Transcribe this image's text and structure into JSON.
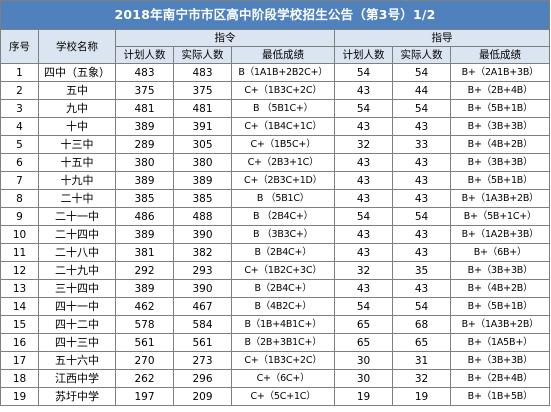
{
  "title": "2018年南宁市市区高中阶段学校招生公告（第3号）1/2",
  "headers": {
    "seq": "序号",
    "school": "学校名称",
    "directive_group": "指令",
    "guidance_group": "指导",
    "plan": "计划人数",
    "actual": "实际人数",
    "min_score": "最低成绩"
  },
  "rows": [
    {
      "no": "1",
      "school": "四中（五象）",
      "d_plan": "483",
      "d_actual": "483",
      "d_min": "B（1A1B+2B2C+）",
      "g_plan": "54",
      "g_actual": "54",
      "g_min": "B+（2A1B+3B）"
    },
    {
      "no": "2",
      "school": "五中",
      "d_plan": "375",
      "d_actual": "375",
      "d_min": "C+（1B3C+2C）",
      "g_plan": "43",
      "g_actual": "44",
      "g_min": "B+（2B+4B）"
    },
    {
      "no": "3",
      "school": "九中",
      "d_plan": "481",
      "d_actual": "481",
      "d_min": "B （5B1C+）",
      "g_plan": "54",
      "g_actual": "54",
      "g_min": "B+（5B+1B）"
    },
    {
      "no": "4",
      "school": "十中",
      "d_plan": "389",
      "d_actual": "391",
      "d_min": "C+（1B4C+1C）",
      "g_plan": "43",
      "g_actual": "43",
      "g_min": "B+（3B+3B）"
    },
    {
      "no": "5",
      "school": "十三中",
      "d_plan": "289",
      "d_actual": "305",
      "d_min": "C+（1B5C+）",
      "g_plan": "32",
      "g_actual": "33",
      "g_min": "B+（4B+2B）"
    },
    {
      "no": "6",
      "school": "十五中",
      "d_plan": "380",
      "d_actual": "380",
      "d_min": "C+（2B3+1C）",
      "g_plan": "43",
      "g_actual": "43",
      "g_min": "B+（3B+3B）"
    },
    {
      "no": "7",
      "school": "十九中",
      "d_plan": "389",
      "d_actual": "389",
      "d_min": "C+（2B3C+1D）",
      "g_plan": "43",
      "g_actual": "43",
      "g_min": "B+（5B+1B）"
    },
    {
      "no": "8",
      "school": "二十中",
      "d_plan": "385",
      "d_actual": "385",
      "d_min": "B （5B1C）",
      "g_plan": "43",
      "g_actual": "43",
      "g_min": "B+（1A3B+2B）"
    },
    {
      "no": "9",
      "school": "二十一中",
      "d_plan": "486",
      "d_actual": "488",
      "d_min": "B （2B4C+）",
      "g_plan": "54",
      "g_actual": "54",
      "g_min": "B+（5B+1C+）"
    },
    {
      "no": "10",
      "school": "二十四中",
      "d_plan": "389",
      "d_actual": "390",
      "d_min": "B （3B3C+）",
      "g_plan": "43",
      "g_actual": "43",
      "g_min": "B+（1A2B+3B）"
    },
    {
      "no": "11",
      "school": "二十八中",
      "d_plan": "381",
      "d_actual": "382",
      "d_min": "B（2B4C+）",
      "g_plan": "43",
      "g_actual": "43",
      "g_min": "B+（6B+）"
    },
    {
      "no": "12",
      "school": "二十九中",
      "d_plan": "292",
      "d_actual": "293",
      "d_min": "C+（1B2C+3C）",
      "g_plan": "32",
      "g_actual": "35",
      "g_min": "B+（3B+3B）"
    },
    {
      "no": "13",
      "school": "三十四中",
      "d_plan": "389",
      "d_actual": "390",
      "d_min": "B（2B4C+）",
      "g_plan": "43",
      "g_actual": "43",
      "g_min": "B+（4B+2B）"
    },
    {
      "no": "14",
      "school": "四十一中",
      "d_plan": "462",
      "d_actual": "467",
      "d_min": "B（4B2C+）",
      "g_plan": "54",
      "g_actual": "54",
      "g_min": "B+（5B+1B）"
    },
    {
      "no": "15",
      "school": "四十二中",
      "d_plan": "578",
      "d_actual": "584",
      "d_min": "B（1B+4B1C+）",
      "g_plan": "65",
      "g_actual": "68",
      "g_min": "B+（1A3B+2B）"
    },
    {
      "no": "16",
      "school": "四十三中",
      "d_plan": "561",
      "d_actual": "561",
      "d_min": "B（2B+3B1C+）",
      "g_plan": "65",
      "g_actual": "65",
      "g_min": "B+（1A5B+）"
    },
    {
      "no": "17",
      "school": "五十六中",
      "d_plan": "270",
      "d_actual": "273",
      "d_min": "C+（1B3C+2C）",
      "g_plan": "30",
      "g_actual": "31",
      "g_min": "B+（3B+3B）"
    },
    {
      "no": "18",
      "school": "江西中学",
      "d_plan": "262",
      "d_actual": "296",
      "d_min": "C+（6C+）",
      "g_plan": "30",
      "g_actual": "32",
      "g_min": "B+（2B+4B）"
    },
    {
      "no": "19",
      "school": "苏圩中学",
      "d_plan": "197",
      "d_actual": "209",
      "d_min": "C+（5C+1C）",
      "g_plan": "19",
      "g_actual": "19",
      "g_min": "B+（1B+5B）"
    }
  ]
}
